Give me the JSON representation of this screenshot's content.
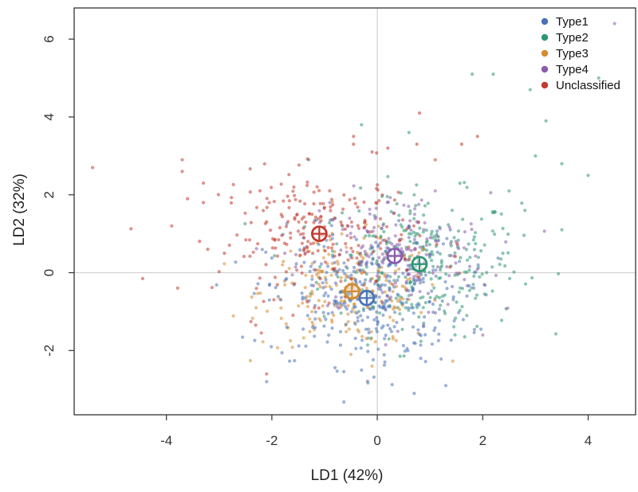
{
  "chart_data": {
    "type": "scatter",
    "title": "",
    "xlabel": "LD1 (42%)",
    "ylabel": "LD2 (32%)",
    "xlim": [
      -5.75,
      4.9
    ],
    "ylim": [
      -3.65,
      6.8
    ],
    "x_ticks": [
      -4,
      -2,
      0,
      2,
      4
    ],
    "y_ticks": [
      -2,
      0,
      2,
      4,
      6
    ],
    "x_tick_labels": [
      "-4",
      "-2",
      "0",
      "2",
      "4"
    ],
    "y_tick_labels": [
      "-2",
      "0",
      "2",
      "4",
      "6"
    ],
    "reference_lines": {
      "x": 0,
      "y": 0
    },
    "grid": false,
    "legend_position": "top-right",
    "series": [
      {
        "name": "Type1",
        "color": "#4a72b8",
        "centroid": [
          -0.2,
          -0.65
        ],
        "spread": [
          0.95,
          0.85
        ],
        "point_count": 320,
        "points": [
          [
            -2.1,
            -2.8
          ],
          [
            -0.3,
            -2.5
          ],
          [
            0.7,
            -3.1
          ],
          [
            1.3,
            -2.9
          ],
          [
            -0.8,
            1.4
          ],
          [
            0.6,
            1.2
          ],
          [
            -1.4,
            0.9
          ],
          [
            1.7,
            -0.6
          ]
        ]
      },
      {
        "name": "Type2",
        "color": "#2e9673",
        "centroid": [
          0.8,
          0.22
        ],
        "spread": [
          0.95,
          0.9
        ],
        "point_count": 300,
        "points": [
          [
            1.8,
            5.1
          ],
          [
            2.2,
            5.1
          ],
          [
            2.9,
            4.7
          ],
          [
            3.2,
            3.9
          ],
          [
            4.2,
            5.0
          ],
          [
            0.7,
            2.0
          ],
          [
            2.5,
            2.1
          ],
          [
            3.0,
            3.0
          ],
          [
            3.5,
            1.1
          ],
          [
            2.8,
            1.6
          ],
          [
            4.0,
            2.5
          ],
          [
            3.5,
            2.8
          ],
          [
            -0.3,
            3.8
          ],
          [
            -1.3,
            2.9
          ],
          [
            0.6,
            3.6
          ]
        ]
      },
      {
        "name": "Type3",
        "color": "#d58b2f",
        "centroid": [
          -0.48,
          -0.48
        ],
        "spread": [
          0.85,
          0.7
        ],
        "point_count": 210,
        "points": [
          [
            -0.1,
            -2.4
          ],
          [
            -0.5,
            -2.1
          ],
          [
            -2.3,
            -0.9
          ],
          [
            -1.8,
            0.2
          ],
          [
            0.3,
            -1.7
          ]
        ]
      },
      {
        "name": "Type4",
        "color": "#8a5cae",
        "centroid": [
          0.33,
          0.43
        ],
        "spread": [
          0.9,
          0.8
        ],
        "point_count": 190,
        "points": [
          [
            4.5,
            6.4
          ],
          [
            1.1,
            2.1
          ],
          [
            -0.9,
            1.8
          ],
          [
            2.0,
            -1.6
          ]
        ]
      },
      {
        "name": "Unclassified",
        "color": "#c23b2e",
        "centroid": [
          -1.1,
          1.0
        ],
        "spread": [
          0.95,
          0.8
        ],
        "point_count": 220,
        "points": [
          [
            -5.4,
            2.7
          ],
          [
            -4.45,
            -0.15
          ],
          [
            -3.7,
            2.9
          ],
          [
            -3.7,
            2.6
          ],
          [
            -3.3,
            1.8
          ],
          [
            -3.3,
            2.3
          ],
          [
            -3.6,
            1.9
          ],
          [
            -3.9,
            1.2
          ],
          [
            -2.9,
            0.5
          ],
          [
            -2.1,
            -2.6
          ],
          [
            -2.2,
            -1.55
          ],
          [
            -0.45,
            3.3
          ],
          [
            -0.45,
            3.5
          ],
          [
            -0.1,
            3.1
          ],
          [
            0.2,
            3.2
          ],
          [
            0.8,
            4.1
          ],
          [
            0.75,
            3.3
          ],
          [
            1.9,
            3.5
          ],
          [
            1.6,
            3.3
          ],
          [
            1.1,
            2.9
          ],
          [
            -0.5,
            0.9
          ]
        ]
      }
    ]
  }
}
